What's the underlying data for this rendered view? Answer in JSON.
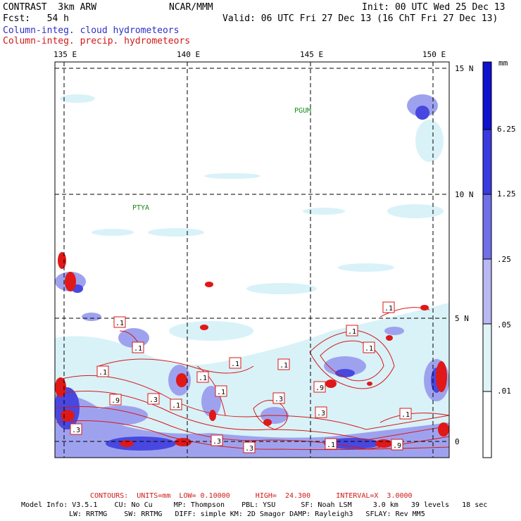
{
  "header": {
    "model": "CONTRAST  3km ARW",
    "center": "NCAR/MMM",
    "init": "Init: 00 UTC Wed 25 Dec 13",
    "fcst": "Fcst:   54 h",
    "valid": "Valid: 06 UTC Fri 27 Dec 13 (16 ChT Fri 27 Dec 13)",
    "field1": "Column-integ. cloud hydrometeors",
    "field2": "Column-integ. precip. hydrometeors"
  },
  "map": {
    "lon_labels": [
      "135 E",
      "140 E",
      "145 E",
      "150 E"
    ],
    "lat_labels": [
      "15 N",
      "10 N",
      "5 N",
      "0"
    ],
    "lon_values": [
      135,
      140,
      145,
      150
    ],
    "lat_values": [
      15,
      10,
      5,
      0
    ],
    "places": [
      "PGUM",
      "PTYA"
    ],
    "contour_labels": [
      ".1",
      ".1",
      ".1",
      ".1",
      ".1",
      ".1",
      ".1",
      ".1",
      ".1",
      ".1",
      ".1",
      ".1",
      ".1",
      ".3",
      ".3",
      ".3",
      ".3",
      ".3",
      ".3",
      ".9",
      ".9",
      ".9"
    ],
    "colors": {
      "cloud_low": "#d8f2f8",
      "cloud_mid": "#b0b4f0",
      "cloud_high": "#6464e8",
      "cloud_max": "#1818e0",
      "precip": "#e01818",
      "place_text": "#1a8a1a"
    }
  },
  "colorbar": {
    "unit": "mm",
    "labels": [
      "6.25",
      "1.25",
      ".25",
      ".05",
      ".01"
    ],
    "colors": [
      "#1010d0",
      "#3a3ae0",
      "#7070e8",
      "#b8b8f4",
      "#e0f4f8",
      "#ffffff"
    ]
  },
  "footer": {
    "contours": "CONTOURS:  UNITS=mm  LOW= 0.10000      HIGH=  24.300      INTERVAL=X  3.0000",
    "info1": "Model Info: V3.5.1    CU: No Cu     MP: Thompson    PBL: YSU      SF: Noah LSM     3.0 km   39 levels   18 sec",
    "info2": "LW: RRTMG    SW: RRTMG   DIFF: simple KM: 2D Smagor DAMP: Rayleigh3   SFLAY: Rev MM5"
  }
}
